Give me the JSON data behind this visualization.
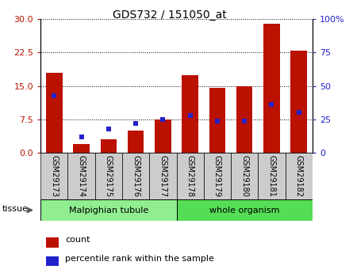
{
  "title": "GDS732 / 151050_at",
  "samples": [
    "GSM29173",
    "GSM29174",
    "GSM29175",
    "GSM29176",
    "GSM29177",
    "GSM29178",
    "GSM29179",
    "GSM29180",
    "GSM29181",
    "GSM29182"
  ],
  "counts": [
    18.0,
    2.0,
    3.0,
    5.0,
    7.5,
    17.5,
    14.5,
    15.0,
    29.0,
    23.0
  ],
  "percentiles": [
    43,
    12,
    18,
    22,
    25,
    28,
    24,
    24,
    36,
    30
  ],
  "groups": [
    {
      "label": "Malpighian tubule",
      "start": 0,
      "end": 5,
      "color": "#90ee90"
    },
    {
      "label": "whole organism",
      "start": 5,
      "end": 10,
      "color": "#55dd55"
    }
  ],
  "tissue_label": "tissue",
  "ylim_left": [
    0,
    30
  ],
  "ylim_right": [
    0,
    100
  ],
  "yticks_left": [
    0,
    7.5,
    15,
    22.5,
    30
  ],
  "yticks_right": [
    0,
    25,
    50,
    75,
    100
  ],
  "bar_color": "#bb1100",
  "dot_color": "#2222cc",
  "legend_count": "count",
  "legend_pct": "percentile rank within the sample",
  "cell_bg": "#cccccc",
  "cell_border": "#888888"
}
